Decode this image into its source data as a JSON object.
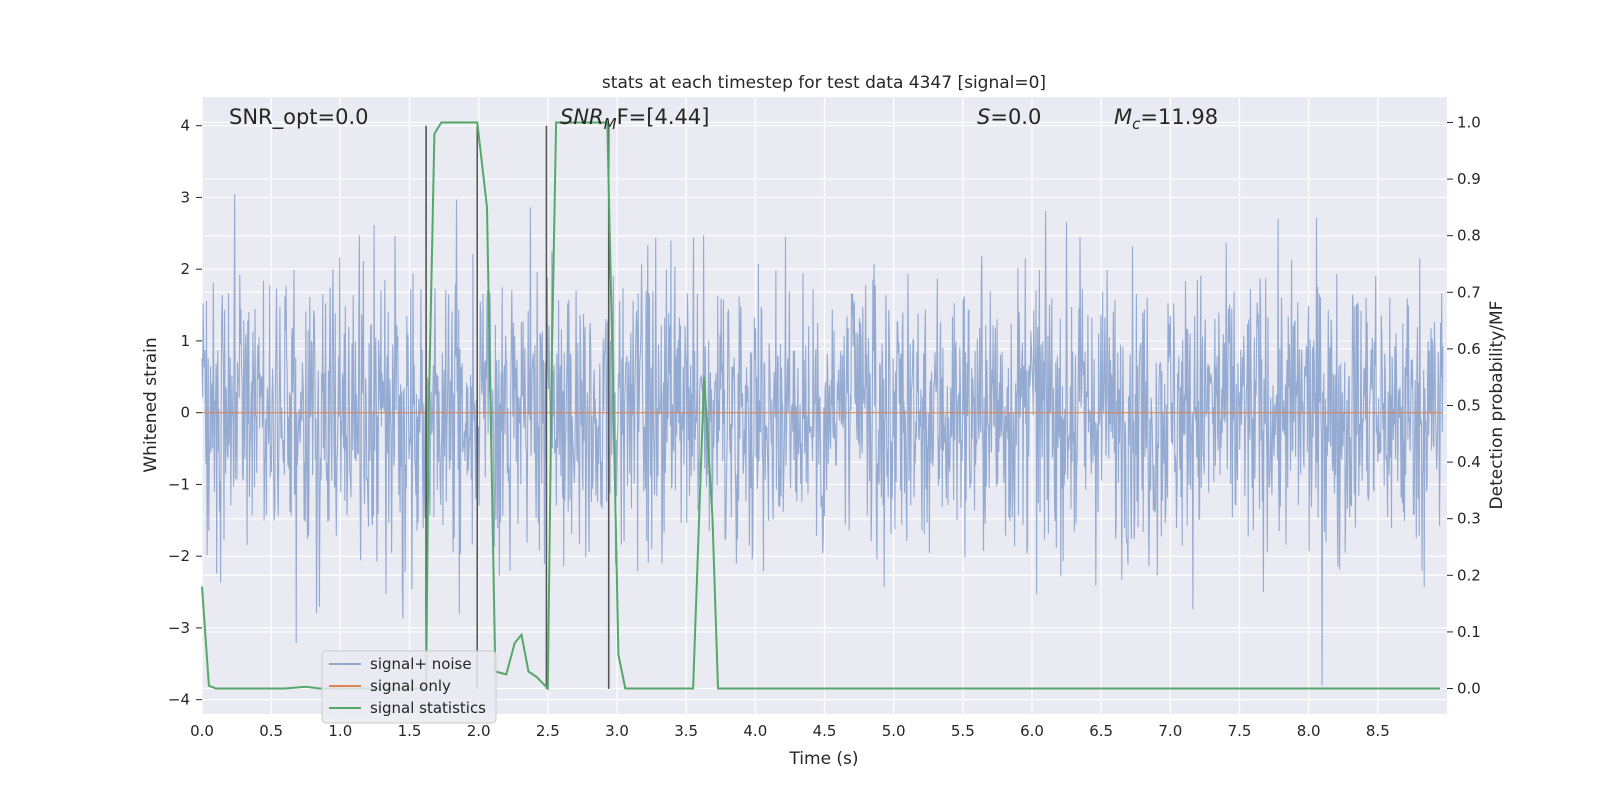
{
  "chart_data": {
    "type": "line",
    "title": "stats at each timestep for test data 4347 [signal=0]",
    "xlabel": "Time (s)",
    "ylabel_left": "Whitened strain",
    "ylabel_right": "Detection probability/MF",
    "xlim": [
      0.0,
      9.0
    ],
    "ylim_left": [
      -4.2,
      4.4
    ],
    "ylim_right": [
      -0.045,
      1.045
    ],
    "x_ticks": [
      "0.0",
      "0.5",
      "1.0",
      "1.5",
      "2.0",
      "2.5",
      "3.0",
      "3.5",
      "4.0",
      "4.5",
      "5.0",
      "5.5",
      "6.0",
      "6.5",
      "7.0",
      "7.5",
      "8.0",
      "8.5"
    ],
    "y_ticks_left": [
      "−4",
      "−3",
      "−2",
      "−1",
      "0",
      "1",
      "2",
      "3",
      "4"
    ],
    "y_ticks_right": [
      "0.0",
      "0.1",
      "0.2",
      "0.3",
      "0.4",
      "0.5",
      "0.6",
      "0.7",
      "0.8",
      "0.9",
      "1.0"
    ],
    "annotations": {
      "snr_opt": "SNR_opt=0.0",
      "snr_mf_main": "SNR",
      "snr_mf_sub": "M",
      "snr_mf_rest": "F=[4.44]",
      "s_label": "S",
      "s_value": "=0.0",
      "mc_main": "M",
      "mc_sub": "c",
      "mc_rest": "=11.98"
    },
    "series": [
      {
        "name": "signal+ noise",
        "color": "#8fa6cf",
        "kind": "noise",
        "typical_amplitude": 1.3,
        "max_amplitude": 4.0
      },
      {
        "name": "signal only",
        "color": "#dd8452",
        "kind": "constant",
        "value": 0.0
      },
      {
        "name": "signal statistics",
        "color": "#55a868",
        "axis": "right",
        "points": [
          [
            0.0,
            0.18
          ],
          [
            0.05,
            0.005
          ],
          [
            0.1,
            0.0
          ],
          [
            0.3,
            0.0
          ],
          [
            0.6,
            0.0
          ],
          [
            0.75,
            0.003
          ],
          [
            0.85,
            0.0
          ],
          [
            1.0,
            0.0
          ],
          [
            1.2,
            0.0
          ],
          [
            1.5,
            0.0
          ],
          [
            1.62,
            0.0
          ],
          [
            1.64,
            0.5
          ],
          [
            1.68,
            0.98
          ],
          [
            1.73,
            1.0
          ],
          [
            1.99,
            1.0
          ],
          [
            2.06,
            0.85
          ],
          [
            2.12,
            0.03
          ],
          [
            2.2,
            0.025
          ],
          [
            2.26,
            0.08
          ],
          [
            2.31,
            0.095
          ],
          [
            2.36,
            0.03
          ],
          [
            2.42,
            0.02
          ],
          [
            2.5,
            0.0
          ],
          [
            2.53,
            0.6
          ],
          [
            2.56,
            1.0
          ],
          [
            2.93,
            1.0
          ],
          [
            2.97,
            0.55
          ],
          [
            3.01,
            0.06
          ],
          [
            3.06,
            0.0
          ],
          [
            3.2,
            0.0
          ],
          [
            3.55,
            0.0
          ],
          [
            3.63,
            0.55
          ],
          [
            3.69,
            0.3
          ],
          [
            3.73,
            0.0
          ],
          [
            4.0,
            0.0
          ],
          [
            5.0,
            0.0
          ],
          [
            6.0,
            0.0
          ],
          [
            7.0,
            0.0
          ],
          [
            8.0,
            0.0
          ],
          [
            8.95,
            0.0
          ]
        ]
      }
    ],
    "vlines": [
      1.62,
      1.99,
      2.49,
      2.94
    ],
    "legend": {
      "placement": "lower-left",
      "entries": [
        "signal+ noise",
        "signal only",
        "signal statistics"
      ]
    },
    "grid": true,
    "colors": {
      "plot_bg": "#eaeaf2",
      "grid": "#ffffff",
      "noise": "#8fa6cf",
      "signal_only": "#dd8452",
      "statistics": "#55a868",
      "vline": "#555555"
    }
  }
}
